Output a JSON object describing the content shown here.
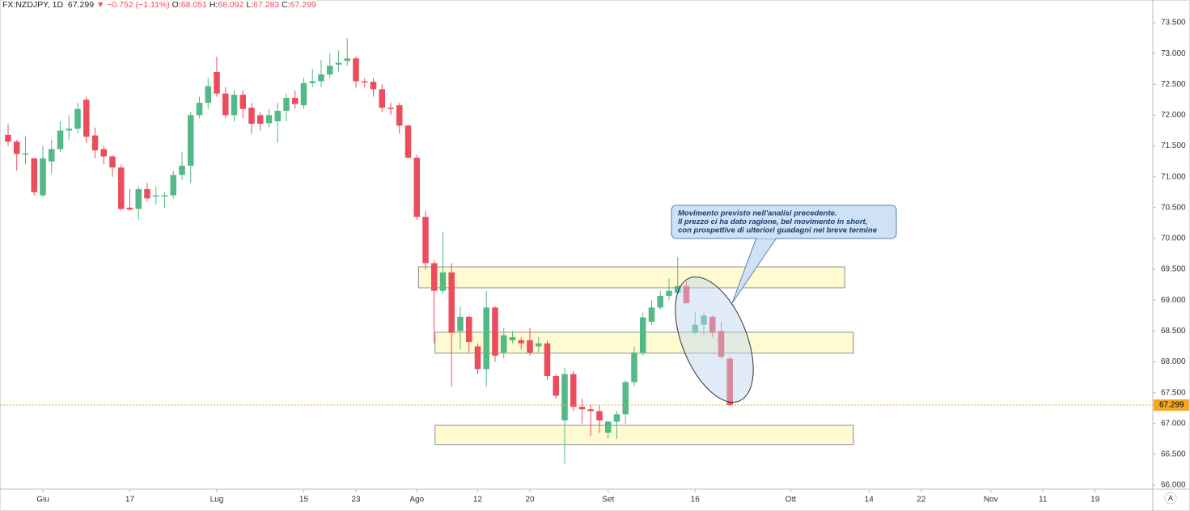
{
  "header": {
    "symbol": "FX:NZDJPY, 1D",
    "change": "−0.752 (−1.11%)",
    "o": "O:",
    "h": "H:",
    "l": "L:",
    "c": "C:"
  },
  "ui": {
    "auto_scale": "A"
  },
  "chart_data": {
    "type": "candlestick",
    "up_color": "#53b987",
    "down_color": "#eb4d5c",
    "last_price_color": "#f5a623",
    "open": [
      71.68,
      71.57,
      71.36,
      71.3,
      70.7,
      71.25,
      71.45,
      71.75,
      71.78,
      72.25,
      71.67,
      71.45,
      71.33,
      71.15,
      70.5,
      70.48,
      70.8,
      70.68,
      70.68,
      70.7,
      71.03,
      71.18,
      72.0,
      72.2,
      72.7,
      72.35,
      72.0,
      72.33,
      72.12,
      72.0,
      71.87,
      71.9,
      72.07,
      72.28,
      72.16,
      72.52,
      72.55,
      72.66,
      72.82,
      72.88,
      72.92,
      72.55,
      72.54,
      72.42,
      72.12,
      72.16,
      71.83,
      71.31,
      70.35,
      69.6,
      69.15,
      69.45,
      68.5,
      68.73,
      68.25,
      67.88,
      68.88,
      68.15,
      68.35,
      68.35,
      68.35,
      68.25,
      68.3,
      67.77,
      67.05,
      67.8,
      67.27,
      67.23,
      67.2,
      66.85,
      67.03,
      67.15,
      67.67,
      68.15,
      68.65,
      68.88,
      69.07,
      69.12,
      69.23,
      68.47,
      68.6,
      68.73,
      68.5,
      68.051
    ],
    "high": [
      71.85,
      71.6,
      71.65,
      71.3,
      71.5,
      71.6,
      71.9,
      72.0,
      72.2,
      72.3,
      71.8,
      71.5,
      71.35,
      71.2,
      70.8,
      70.85,
      70.9,
      70.85,
      70.75,
      71.1,
      71.4,
      72.05,
      72.3,
      72.6,
      72.95,
      72.45,
      72.4,
      72.4,
      72.2,
      72.05,
      72.1,
      72.2,
      72.35,
      72.4,
      72.6,
      72.75,
      72.9,
      73.0,
      73.05,
      73.25,
      72.95,
      72.6,
      72.6,
      72.5,
      72.2,
      72.2,
      71.85,
      71.35,
      70.45,
      69.65,
      70.1,
      69.6,
      68.9,
      68.75,
      68.3,
      69.15,
      68.9,
      68.55,
      68.5,
      68.4,
      68.55,
      68.4,
      68.35,
      67.8,
      67.9,
      67.85,
      67.4,
      67.3,
      67.3,
      67.05,
      67.2,
      67.7,
      68.25,
      68.8,
      69.0,
      69.15,
      69.35,
      69.7,
      69.3,
      68.8,
      68.8,
      68.75,
      68.65,
      68.092
    ],
    "low": [
      71.5,
      71.1,
      71.2,
      70.7,
      70.68,
      71.05,
      71.4,
      71.6,
      71.7,
      71.55,
      71.3,
      71.2,
      71.0,
      70.45,
      70.45,
      70.3,
      70.6,
      70.55,
      70.5,
      70.65,
      70.95,
      70.9,
      71.95,
      72.1,
      72.3,
      71.95,
      71.9,
      71.95,
      71.7,
      71.75,
      71.8,
      71.55,
      71.9,
      72.1,
      72.1,
      72.45,
      72.45,
      72.6,
      72.7,
      72.8,
      72.45,
      72.45,
      72.3,
      72.05,
      72.0,
      71.7,
      71.3,
      70.3,
      69.5,
      68.3,
      69.1,
      67.6,
      68.2,
      68.15,
      67.8,
      67.6,
      68.0,
      68.05,
      68.3,
      68.2,
      68.1,
      68.15,
      67.7,
      67.4,
      66.35,
      67.2,
      67.0,
      66.8,
      66.85,
      66.75,
      66.75,
      67.0,
      67.6,
      68.1,
      68.6,
      68.85,
      69.0,
      69.1,
      68.95,
      68.45,
      68.45,
      68.4,
      68.05,
      67.283
    ],
    "close": [
      71.57,
      71.37,
      71.38,
      70.75,
      71.3,
      71.45,
      71.75,
      71.78,
      72.1,
      71.65,
      71.43,
      71.33,
      71.15,
      70.48,
      70.47,
      70.8,
      70.65,
      70.7,
      70.7,
      71.03,
      71.18,
      72.0,
      72.2,
      72.47,
      72.35,
      72.0,
      72.33,
      72.1,
      71.86,
      71.86,
      72.0,
      72.07,
      72.28,
      72.18,
      72.52,
      72.55,
      72.66,
      72.8,
      72.85,
      72.92,
      72.55,
      72.53,
      72.42,
      72.12,
      72.1,
      71.83,
      71.31,
      70.35,
      69.6,
      69.15,
      69.45,
      68.47,
      68.73,
      68.32,
      67.88,
      68.88,
      68.1,
      68.43,
      68.4,
      68.3,
      68.15,
      68.3,
      67.77,
      67.45,
      67.8,
      67.27,
      67.23,
      67.2,
      67.05,
      67.03,
      67.15,
      67.67,
      68.15,
      68.72,
      68.88,
      69.07,
      69.15,
      69.23,
      68.95,
      68.6,
      68.75,
      68.47,
      68.08,
      67.299
    ],
    "xlim": [
      -0.93,
      131.63
    ],
    "xticks": [
      {
        "value": 4,
        "label": "Giu"
      },
      {
        "value": 14,
        "label": "17"
      },
      {
        "value": 24,
        "label": "Lug"
      },
      {
        "value": 34,
        "label": "15"
      },
      {
        "value": 40,
        "label": "23"
      },
      {
        "value": 47,
        "label": "Ago"
      },
      {
        "value": 54,
        "label": "12"
      },
      {
        "value": 60,
        "label": "20"
      },
      {
        "value": 69,
        "label": "Set"
      },
      {
        "value": 79,
        "label": "16"
      },
      {
        "value": 90,
        "label": "Ott"
      },
      {
        "value": 99,
        "label": "14"
      },
      {
        "value": 105,
        "label": "22"
      },
      {
        "value": 113,
        "label": "Nov"
      },
      {
        "value": 119,
        "label": "11"
      },
      {
        "value": 125,
        "label": "19"
      }
    ],
    "ylim": [
      65.935,
      73.867
    ],
    "yticks": [
      {
        "value": 66.0,
        "label": "66.000"
      },
      {
        "value": 66.5,
        "label": "66.500"
      },
      {
        "value": 67.0,
        "label": "67.000"
      },
      {
        "value": 67.5,
        "label": "67.500"
      },
      {
        "value": 68.0,
        "label": "68.000"
      },
      {
        "value": 68.5,
        "label": "68.500"
      },
      {
        "value": 69.0,
        "label": "69.000"
      },
      {
        "value": 69.5,
        "label": "69.500"
      },
      {
        "value": 70.0,
        "label": "70.000"
      },
      {
        "value": 70.5,
        "label": "70.500"
      },
      {
        "value": 71.0,
        "label": "71.000"
      },
      {
        "value": 71.5,
        "label": "71.500"
      },
      {
        "value": 72.0,
        "label": "72.000"
      },
      {
        "value": 72.5,
        "label": "72.500"
      },
      {
        "value": 73.0,
        "label": "73.000"
      },
      {
        "value": 73.5,
        "label": "73.500"
      }
    ],
    "zones": [
      {
        "from": 47.2,
        "to": 96.2,
        "low": 69.2,
        "high": 69.54
      },
      {
        "from": 49.1,
        "to": 97.2,
        "low": 68.14,
        "high": 68.48
      },
      {
        "from": 49.1,
        "to": 97.2,
        "low": 66.66,
        "high": 66.97
      }
    ],
    "annotation": [
      "Movimento previsto nell'analisi precedente.",
      "Il prezzo ci ha dato ragione, bel movimento in short,",
      "con prospettive di ulteriori guadagni nel breve termine"
    ]
  }
}
